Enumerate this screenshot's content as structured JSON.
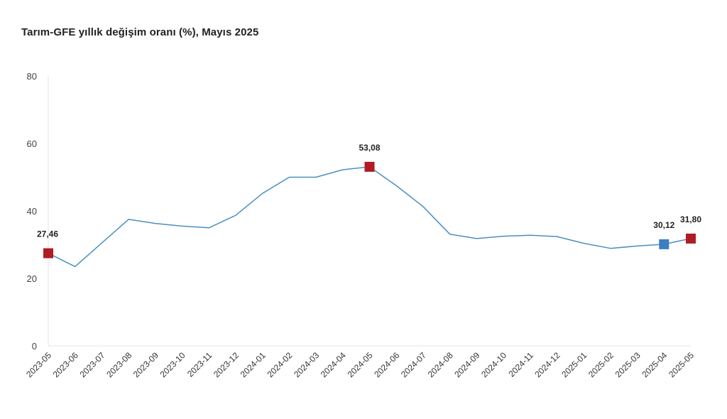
{
  "chart_data": {
    "type": "line",
    "title": "Tarım-GFE yıllık değişim oranı (%), Mayıs 2025",
    "xlabel": "",
    "ylabel": "",
    "ylim": [
      0,
      80
    ],
    "yticks": [
      "0",
      "20",
      "40",
      "60",
      "80"
    ],
    "grid": false,
    "legend": "none",
    "line_color": "#4a8fc1",
    "categories": [
      "2023-05",
      "2023-06",
      "2023-07",
      "2023-08",
      "2023-09",
      "2023-10",
      "2023-11",
      "2023-12",
      "2024-01",
      "2024-02",
      "2024-03",
      "2024-04",
      "2024-05",
      "2024-06",
      "2024-07",
      "2024-08",
      "2024-09",
      "2024-10",
      "2024-11",
      "2024-12",
      "2025-01",
      "2025-02",
      "2025-03",
      "2025-04",
      "2025-05"
    ],
    "series": [
      {
        "values": [
          27.46,
          23.5,
          30.5,
          37.5,
          36.3,
          35.5,
          35.0,
          38.7,
          45.2,
          50.0,
          50.0,
          52.2,
          53.08,
          47.5,
          41.3,
          33.1,
          31.8,
          32.5,
          32.8,
          32.4,
          30.4,
          28.9,
          29.6,
          30.12,
          31.8
        ]
      }
    ],
    "highlights": [
      {
        "index": 0,
        "label": "27,46",
        "color": "#b01c24"
      },
      {
        "index": 12,
        "label": "53,08",
        "color": "#b01c24"
      },
      {
        "index": 23,
        "label": "30,12",
        "color": "#3b7fc0"
      },
      {
        "index": 24,
        "label": "31,80",
        "color": "#b01c24"
      }
    ]
  }
}
